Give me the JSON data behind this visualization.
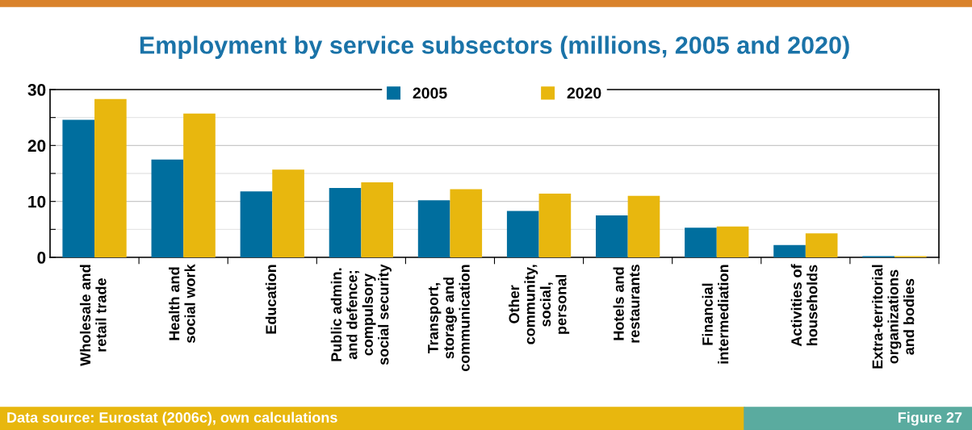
{
  "chart_data": {
    "type": "bar",
    "title": "Employment by service subsectors (millions, 2005 and 2020)",
    "categories": [
      "Wholesale and\nretail trade",
      "Health and\nsocial work",
      "Education",
      "Public admin.\nand defence;\ncompulsory\nsocial security",
      "Transport,\nstorage and\ncommunication",
      "Other\ncommunity,\nsocial,\npersonal",
      "Hotels and\nrestaurants",
      "Financial\nintermediation",
      "Activities of\nhouseholds",
      "Extra-territorial\norganizations\nand bodies"
    ],
    "series": [
      {
        "name": "2005",
        "color": "#006e9e",
        "values": [
          24.6,
          17.5,
          11.8,
          12.4,
          10.2,
          8.3,
          7.5,
          5.3,
          2.2,
          0.2
        ]
      },
      {
        "name": "2020",
        "color": "#e8b70e",
        "values": [
          28.3,
          25.7,
          15.7,
          13.4,
          12.2,
          11.4,
          11.0,
          5.5,
          4.3,
          0.2
        ]
      }
    ],
    "ylim": [
      0,
      30
    ],
    "yticks": [
      0,
      {
        "value": 5,
        "label": null
      },
      10,
      {
        "value": 15,
        "label": null
      },
      20,
      {
        "value": 25,
        "label": null
      },
      30
    ],
    "grid": "y",
    "legend": "top",
    "annotations": [
      "Data source: Eurostat (2006c), own calculations",
      "Figure 27"
    ]
  }
}
